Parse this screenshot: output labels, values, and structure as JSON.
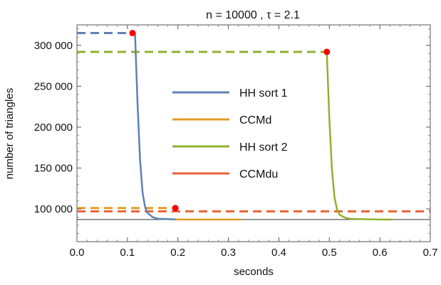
{
  "chart_data": {
    "type": "line",
    "title": "n = 10000 , τ = 2.1",
    "xlabel": "seconds",
    "ylabel": "number of triangles",
    "xlim": [
      0,
      0.7
    ],
    "ylim": [
      60000,
      325000
    ],
    "x_ticks": [
      0.0,
      0.1,
      0.2,
      0.3,
      0.4,
      0.5,
      0.6,
      0.7
    ],
    "x_tick_labels": [
      "0.0",
      "0.1",
      "0.2",
      "0.3",
      "0.4",
      "0.5",
      "0.6",
      "0.7"
    ],
    "y_ticks": [
      100000,
      150000,
      200000,
      250000,
      300000
    ],
    "y_tick_labels": [
      "100 000",
      "150 000",
      "200 000",
      "250 000",
      "300 000"
    ],
    "grid": false,
    "legend_position": "center",
    "reference_line": {
      "y": 87000,
      "color": "#333333"
    },
    "series": [
      {
        "name": "HH sort 1",
        "color": "#5E81B5",
        "x": [
          0.115,
          0.12,
          0.125,
          0.13,
          0.135,
          0.14,
          0.15,
          0.16,
          0.18,
          0.2
        ],
        "y": [
          315000,
          230000,
          160000,
          120000,
          102000,
          95000,
          90000,
          88000,
          87500,
          87000
        ],
        "marker": {
          "x": 0.11,
          "y": 315000
        },
        "dashed_start_value": 315000
      },
      {
        "name": "CCMd",
        "color": "#E19C24",
        "x": [
          0.195,
          0.22,
          0.25,
          0.28,
          0.3,
          0.325
        ],
        "y": [
          87000,
          87000,
          87000,
          87000,
          87000,
          87000
        ],
        "marker": {
          "x": 0.195,
          "y": 101000
        },
        "dashed_start_value": 101000
      },
      {
        "name": "HH sort 2",
        "color": "#8FB032",
        "x": [
          0.495,
          0.5,
          0.505,
          0.51,
          0.515,
          0.52,
          0.53,
          0.54,
          0.56,
          0.6,
          0.625
        ],
        "y": [
          292000,
          210000,
          150000,
          115000,
          100000,
          93000,
          89500,
          88000,
          87500,
          87000,
          87000
        ],
        "marker": {
          "x": 0.495,
          "y": 292000
        },
        "dashed_start_value": 292000
      },
      {
        "name": "CCMdu",
        "color": "#EB6235",
        "dashed_start_value": 97000
      }
    ],
    "legend": [
      {
        "name": "HH sort 1",
        "color": "#5E81B5"
      },
      {
        "name": "CCMd",
        "color": "#E19C24"
      },
      {
        "name": "HH sort 2",
        "color": "#8FB032"
      },
      {
        "name": "CCMdu",
        "color": "#EB6235"
      }
    ],
    "marker_color": "#FF0000"
  }
}
